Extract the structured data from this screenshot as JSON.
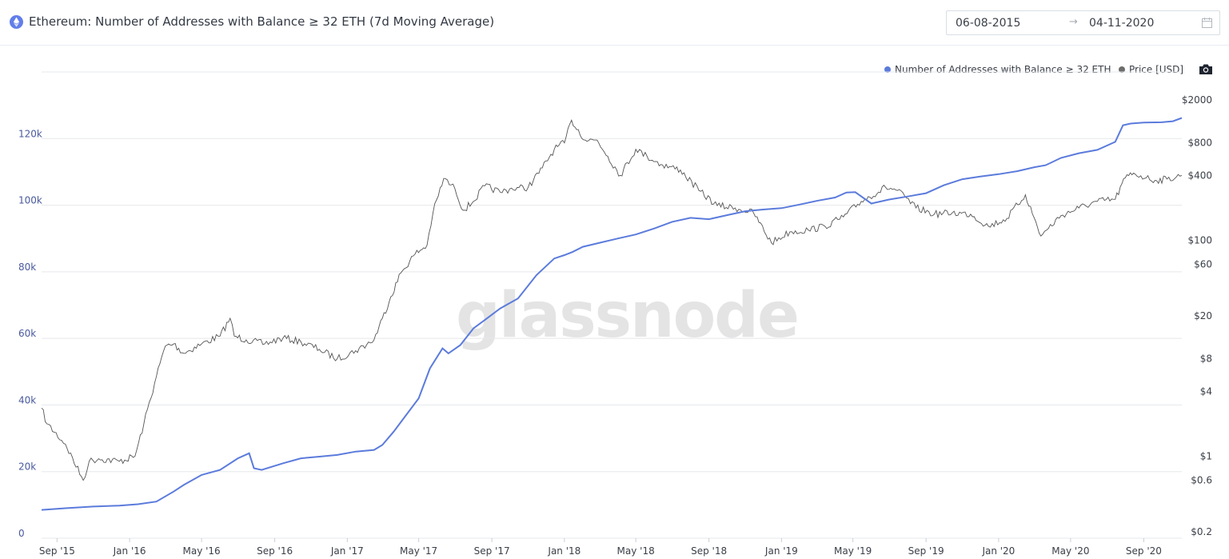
{
  "header": {
    "title": "Ethereum: Number of Addresses with Balance ≥ 32 ETH (7d Moving Average)",
    "date_start": "06-08-2015",
    "date_arrow": "→",
    "date_end": "04-11-2020",
    "logo_icon": "ethereum-logo-icon",
    "calendar_icon": "calendar-icon"
  },
  "legend": {
    "series_addresses": "Number of Addresses with Balance ≥ 32 ETH",
    "series_price": "Price [USD]",
    "camera_icon": "camera-icon"
  },
  "watermark": "glassnode",
  "colors": {
    "addresses": "#5b7bdc",
    "price": "#555555",
    "grid": "#e6e8ec",
    "left_axis_text": "#4a5a9e"
  },
  "chart_data": {
    "type": "line",
    "title": "Ethereum: Number of Addresses with Balance ≥ 32 ETH (7d Moving Average)",
    "x_range": [
      "2015-08-06",
      "2020-11-04"
    ],
    "x_ticks": [
      "Sep '15",
      "Jan '16",
      "May '16",
      "Sep '16",
      "Jan '17",
      "May '17",
      "Sep '17",
      "Jan '18",
      "May '18",
      "Sep '18",
      "Jan '19",
      "May '19",
      "Sep '19",
      "Jan '20",
      "May '20",
      "Sep '20"
    ],
    "x_tick_dates": [
      "2015-09-01",
      "2016-01-01",
      "2016-05-01",
      "2016-09-01",
      "2017-01-01",
      "2017-05-01",
      "2017-09-01",
      "2018-01-01",
      "2018-05-01",
      "2018-09-01",
      "2019-01-01",
      "2019-05-01",
      "2019-09-01",
      "2020-01-01",
      "2020-05-01",
      "2020-09-01"
    ],
    "y_left": {
      "label": "",
      "ticks": [
        "0",
        "20k",
        "40k",
        "60k",
        "80k",
        "100k",
        "120k"
      ],
      "tick_values": [
        0,
        20000,
        40000,
        60000,
        80000,
        100000,
        120000
      ],
      "range": [
        0,
        140000
      ]
    },
    "y_right": {
      "label": "",
      "scale": "log",
      "ticks": [
        "$0.2",
        "$0.6",
        "$1",
        "$4",
        "$8",
        "$20",
        "$60",
        "$100",
        "$400",
        "$800",
        "$2000"
      ],
      "tick_values": [
        0.2,
        0.6,
        1,
        4,
        8,
        20,
        60,
        100,
        400,
        800,
        2000
      ]
    },
    "grid": true,
    "legend_position": "top-right",
    "series": [
      {
        "name": "Number of Addresses with Balance ≥ 32 ETH",
        "axis": "left",
        "x": [
          "2015-08-06",
          "2015-09-15",
          "2015-11-01",
          "2015-12-15",
          "2016-01-15",
          "2016-02-15",
          "2016-03-15",
          "2016-04-01",
          "2016-05-01",
          "2016-06-01",
          "2016-07-01",
          "2016-07-20",
          "2016-07-28",
          "2016-08-10",
          "2016-09-15",
          "2016-10-15",
          "2016-11-15",
          "2016-12-15",
          "2017-01-15",
          "2017-02-15",
          "2017-03-01",
          "2017-03-20",
          "2017-04-10",
          "2017-05-01",
          "2017-05-20",
          "2017-06-10",
          "2017-06-20",
          "2017-07-10",
          "2017-08-01",
          "2017-08-20",
          "2017-09-15",
          "2017-10-15",
          "2017-11-15",
          "2017-12-15",
          "2018-01-01",
          "2018-01-15",
          "2018-02-01",
          "2018-03-01",
          "2018-04-01",
          "2018-05-01",
          "2018-06-01",
          "2018-07-01",
          "2018-08-01",
          "2018-09-01",
          "2018-10-01",
          "2018-11-01",
          "2018-12-01",
          "2019-01-01",
          "2019-02-01",
          "2019-03-01",
          "2019-04-01",
          "2019-04-20",
          "2019-05-05",
          "2019-06-01",
          "2019-07-01",
          "2019-08-01",
          "2019-09-01",
          "2019-10-01",
          "2019-11-01",
          "2019-12-01",
          "2020-01-01",
          "2020-02-01",
          "2020-03-01",
          "2020-03-20",
          "2020-04-15",
          "2020-05-15",
          "2020-06-15",
          "2020-07-15",
          "2020-07-28",
          "2020-08-10",
          "2020-09-01",
          "2020-10-01",
          "2020-10-20",
          "2020-11-04"
        ],
        "values": [
          8500,
          9000,
          9500,
          9800,
          10200,
          11000,
          14000,
          16000,
          19000,
          20500,
          24000,
          25500,
          21000,
          20500,
          22500,
          24000,
          24500,
          25000,
          26000,
          26500,
          28000,
          32000,
          37000,
          42000,
          51000,
          57000,
          55500,
          58000,
          63000,
          65500,
          69000,
          72000,
          79000,
          84000,
          85000,
          86000,
          87500,
          88700,
          90000,
          91200,
          93000,
          95000,
          96200,
          95800,
          97000,
          98200,
          98700,
          99100,
          100200,
          101300,
          102300,
          103800,
          103900,
          100500,
          101700,
          102600,
          103600,
          106000,
          107800,
          108600,
          109300,
          110200,
          111400,
          112000,
          114200,
          115600,
          116600,
          119000,
          124000,
          124500,
          124800,
          124900,
          125200,
          126200
        ]
      },
      {
        "name": "Price [USD]",
        "axis": "right",
        "x": [
          "2015-08-06",
          "2015-08-15",
          "2015-09-15",
          "2015-10-15",
          "2015-10-25",
          "2015-11-10",
          "2015-12-15",
          "2016-01-10",
          "2016-01-25",
          "2016-02-15",
          "2016-03-01",
          "2016-03-15",
          "2016-04-01",
          "2016-05-01",
          "2016-06-01",
          "2016-06-18",
          "2016-06-25",
          "2016-07-15",
          "2016-08-15",
          "2016-09-15",
          "2016-10-15",
          "2016-11-15",
          "2016-12-15",
          "2017-01-15",
          "2017-02-15",
          "2017-03-01",
          "2017-03-15",
          "2017-04-01",
          "2017-04-25",
          "2017-05-15",
          "2017-05-25",
          "2017-06-12",
          "2017-07-01",
          "2017-07-15",
          "2017-08-01",
          "2017-08-20",
          "2017-09-15",
          "2017-10-01",
          "2017-11-01",
          "2017-11-25",
          "2017-12-15",
          "2018-01-01",
          "2018-01-13",
          "2018-02-05",
          "2018-02-25",
          "2018-03-15",
          "2018-04-05",
          "2018-05-01",
          "2018-05-20",
          "2018-06-15",
          "2018-07-15",
          "2018-08-15",
          "2018-09-15",
          "2018-10-15",
          "2018-11-15",
          "2018-12-15",
          "2019-01-15",
          "2019-02-15",
          "2019-03-15",
          "2019-04-15",
          "2019-05-15",
          "2019-06-25",
          "2019-07-15",
          "2019-08-15",
          "2019-09-15",
          "2019-10-15",
          "2019-11-15",
          "2019-12-15",
          "2020-01-15",
          "2020-02-15",
          "2020-03-12",
          "2020-03-25",
          "2020-04-15",
          "2020-05-15",
          "2020-06-15",
          "2020-07-15",
          "2020-08-01",
          "2020-08-15",
          "2020-09-05",
          "2020-09-20",
          "2020-10-10",
          "2020-11-04"
        ],
        "values": [
          2.8,
          2.0,
          1.3,
          0.6,
          0.9,
          0.95,
          0.9,
          1.0,
          2.0,
          5.5,
          10.5,
          11.0,
          9.0,
          11.0,
          13.0,
          19.0,
          13.0,
          12.0,
          11.0,
          12.5,
          11.5,
          9.8,
          8.0,
          9.5,
          12.0,
          19.0,
          30.0,
          50.0,
          75.0,
          90.0,
          180.0,
          375.0,
          300.0,
          190.0,
          230.0,
          320.0,
          280.0,
          300.0,
          310.0,
          470.0,
          700.0,
          800.0,
          1300.0,
          850.0,
          850.0,
          600.0,
          400.0,
          700.0,
          600.0,
          500.0,
          450.0,
          290.0,
          210.0,
          200.0,
          180.0,
          95.0,
          120.0,
          125.0,
          135.0,
          165.0,
          230.0,
          310.0,
          290.0,
          200.0,
          175.0,
          180.0,
          175.0,
          135.0,
          160.0,
          265.0,
          110.0,
          130.0,
          170.0,
          200.0,
          230.0,
          240.0,
          380.0,
          420.0,
          380.0,
          360.0,
          370.0,
          400.0
        ]
      }
    ]
  }
}
